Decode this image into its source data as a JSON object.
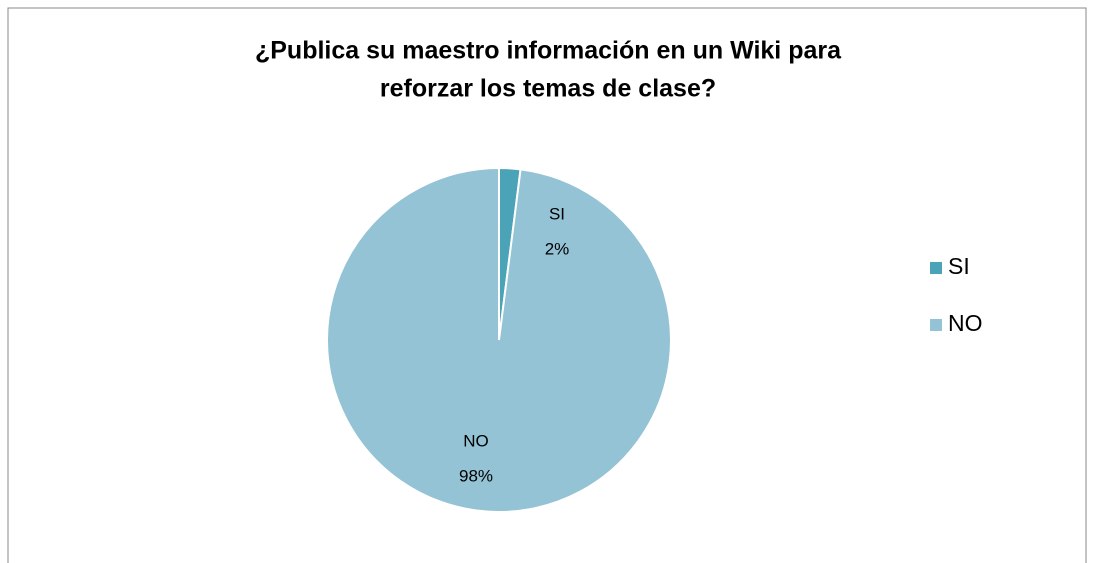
{
  "chart_data": {
    "type": "pie",
    "title": [
      "¿Publica su maestro información en un Wiki para",
      "reforzar los temas de clase?"
    ],
    "categories": [
      "SI",
      "NO"
    ],
    "values": [
      2,
      98
    ],
    "value_labels": [
      "2%",
      "98%"
    ],
    "colors": [
      "#4aa3b7",
      "#93c3d5"
    ],
    "legend": "right"
  }
}
